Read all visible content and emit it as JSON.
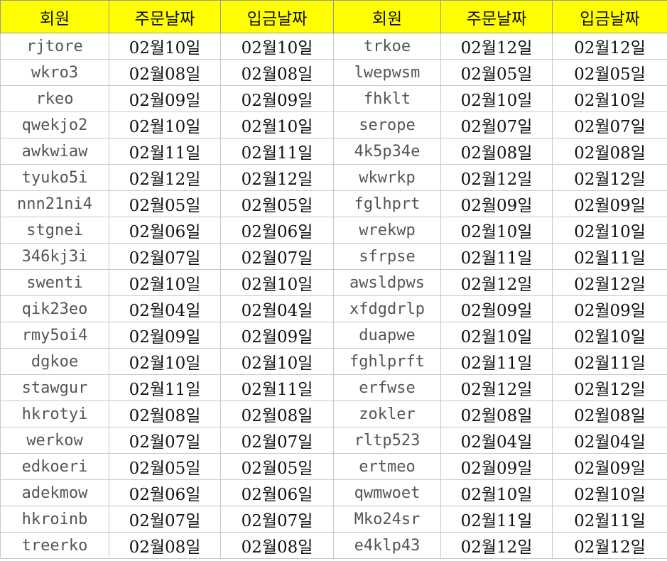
{
  "table": {
    "header": [
      "회원",
      "주문날짜",
      "입금날짜",
      "회원",
      "주문날짜",
      "입금날짜"
    ],
    "rows": [
      [
        "rjtore",
        "02월10일",
        "02월10일",
        "trkoe",
        "02월12일",
        "02월12일"
      ],
      [
        "wkro3",
        "02월08일",
        "02월08일",
        "lwepwsm",
        "02월05일",
        "02월05일"
      ],
      [
        "rkeo",
        "02월09일",
        "02월09일",
        "fhklt",
        "02월10일",
        "02월10일"
      ],
      [
        "qwekjo2",
        "02월10일",
        "02월10일",
        "serope",
        "02월07일",
        "02월07일"
      ],
      [
        "awkwiaw",
        "02월11일",
        "02월11일",
        "4k5p34e",
        "02월08일",
        "02월08일"
      ],
      [
        "tyuko5i",
        "02월12일",
        "02월12일",
        "wkwrkp",
        "02월12일",
        "02월12일"
      ],
      [
        "nnn21ni4",
        "02월05일",
        "02월05일",
        "fglhprt",
        "02월09일",
        "02월09일"
      ],
      [
        "stgnei",
        "02월06일",
        "02월06일",
        "wrekwp",
        "02월10일",
        "02월10일"
      ],
      [
        "346kj3i",
        "02월07일",
        "02월07일",
        "sfrpse",
        "02월11일",
        "02월11일"
      ],
      [
        "swenti",
        "02월10일",
        "02월10일",
        "awsldpws",
        "02월12일",
        "02월12일"
      ],
      [
        "qik23eo",
        "02월04일",
        "02월04일",
        "xfdgdrlp",
        "02월09일",
        "02월09일"
      ],
      [
        "rmy5oi4",
        "02월09일",
        "02월09일",
        "duapwe",
        "02월10일",
        "02월10일"
      ],
      [
        "dgkoe",
        "02월10일",
        "02월10일",
        "fghlprft",
        "02월11일",
        "02월11일"
      ],
      [
        "stawgur",
        "02월11일",
        "02월11일",
        "erfwse",
        "02월12일",
        "02월12일"
      ],
      [
        "hkrotyi",
        "02월08일",
        "02월08일",
        "zokler",
        "02월08일",
        "02월08일"
      ],
      [
        "werkow",
        "02월07일",
        "02월07일",
        "rltp523",
        "02월04일",
        "02월04일"
      ],
      [
        "edkoeri",
        "02월05일",
        "02월05일",
        "ertmeo",
        "02월09일",
        "02월09일"
      ],
      [
        "adekmow",
        "02월06일",
        "02월06일",
        "qwmwoet",
        "02월10일",
        "02월10일"
      ],
      [
        "hkroinb",
        "02월07일",
        "02월07일",
        "Mko24sr",
        "02월11일",
        "02월11일"
      ],
      [
        "treerko",
        "02월08일",
        "02월08일",
        "e4klp43",
        "02월12일",
        "02월12일"
      ]
    ]
  }
}
